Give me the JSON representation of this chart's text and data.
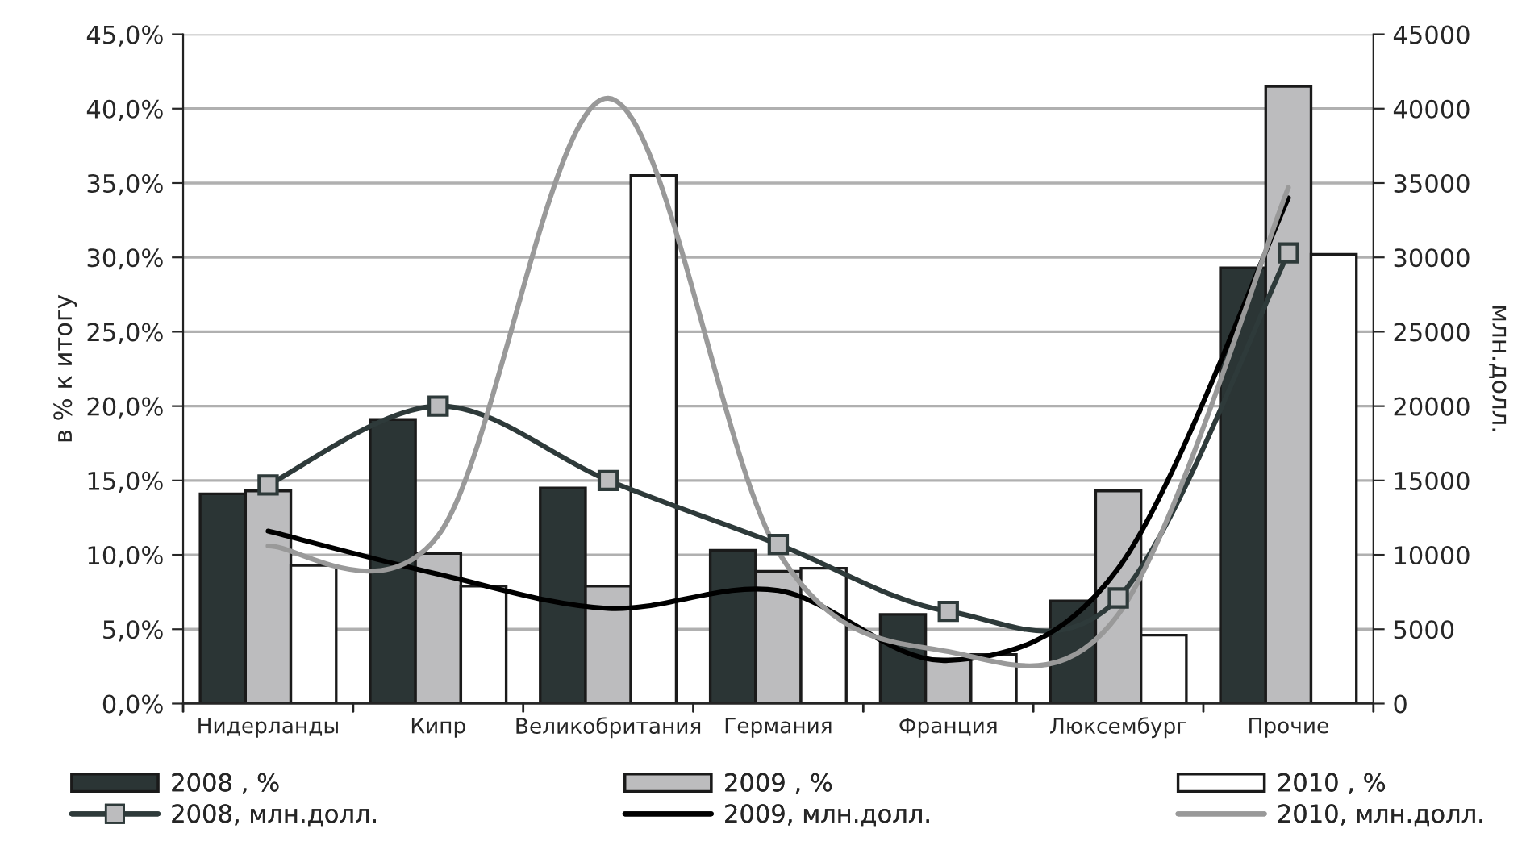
{
  "chart_data": {
    "type": "bar",
    "categories": [
      "Нидерланды",
      "Кипр",
      "Великобритания",
      "Германия",
      "Франция",
      "Люксембург",
      "Прочие"
    ],
    "ylabel": "в % к итогу",
    "y2label": "млн.долл.",
    "series": [
      {
        "name": "2008 , %",
        "color": "#2b3535",
        "values": [
          14.1,
          19.1,
          14.5,
          10.3,
          6.0,
          6.9,
          29.3
        ]
      },
      {
        "name": "2009 , %",
        "color": "#bcbcbe",
        "values": [
          14.3,
          10.1,
          7.9,
          8.9,
          3.0,
          14.3,
          41.5
        ]
      },
      {
        "name": "2010 , %",
        "color": "#ffffff",
        "values": [
          9.3,
          7.9,
          35.5,
          9.1,
          3.3,
          4.6,
          30.2
        ]
      },
      {
        "name": "2008, млн.долл.",
        "type": "line",
        "axis": "y2",
        "marker": "square",
        "color": "#2e3a3a",
        "values": [
          14700,
          20000,
          15000,
          10700,
          6200,
          7100,
          30300
        ]
      },
      {
        "name": "2009, млн.долл.",
        "type": "line",
        "axis": "y2",
        "color": "#000000",
        "values": [
          11600,
          8700,
          6400,
          7600,
          2900,
          9100,
          34000
        ]
      },
      {
        "name": "2010, млн.долл.",
        "type": "line",
        "axis": "y2",
        "color": "#999999",
        "values": [
          10600,
          11300,
          40700,
          10200,
          3500,
          6000,
          34700
        ]
      }
    ],
    "ylim": [
      0,
      45
    ],
    "yticks": [
      {
        "value": 0,
        "label": "0,0%"
      },
      {
        "value": 5,
        "label": "5,0%"
      },
      {
        "value": 10,
        "label": "10,0%"
      },
      {
        "value": 15,
        "label": "15,0%"
      },
      {
        "value": 20,
        "label": "20,0%"
      },
      {
        "value": 25,
        "label": "25,0%"
      },
      {
        "value": 30,
        "label": "30,0%"
      },
      {
        "value": 35,
        "label": "35,0%"
      },
      {
        "value": 40,
        "label": "40,0%"
      },
      {
        "value": 45,
        "label": "45,0%"
      }
    ],
    "y2lim": [
      0,
      45000
    ],
    "y2ticks": [
      0,
      5000,
      10000,
      15000,
      20000,
      25000,
      30000,
      35000,
      40000,
      45000
    ],
    "grid": "y",
    "legend": "bottom",
    "line_style": "solid"
  }
}
